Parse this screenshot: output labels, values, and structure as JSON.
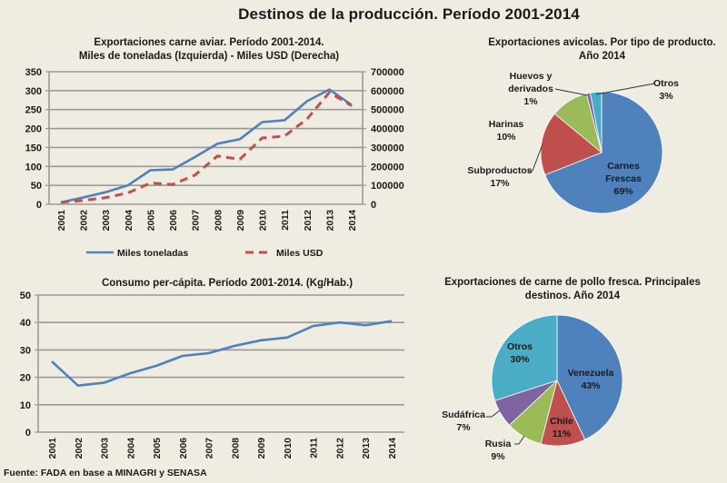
{
  "title": "Destinos de la producción. Período 2001-2014",
  "source": "Fuente: FADA en base a MINAGRI y SENASA",
  "colors": {
    "blue": "#4f81bd",
    "red": "#c0504d",
    "green": "#9bbb59",
    "purple": "#8064a2",
    "teal": "#4bacc6",
    "grid": "#9a9a9a",
    "background": "#efece2"
  },
  "chart_data": [
    {
      "type": "line",
      "title": "Exportaciones carne aviar. Período 2001-2014.",
      "subtitle": "Miles de toneladas (Izquierda) - Miles USD (Derecha)",
      "x": [
        "2001",
        "2002",
        "2003",
        "2004",
        "2005",
        "2006",
        "2007",
        "2008",
        "2009",
        "2010",
        "2011",
        "2012",
        "2013",
        "2014"
      ],
      "ylim": [
        0,
        350
      ],
      "y_ticks": [
        0,
        50,
        100,
        150,
        200,
        250,
        300,
        350
      ],
      "y2lim": [
        0,
        700000
      ],
      "y2_ticks": [
        0,
        100000,
        200000,
        300000,
        400000,
        500000,
        600000,
        700000
      ],
      "grid": true,
      "legend": "bottom",
      "series": [
        {
          "name": "Miles toneladas",
          "axis": "left",
          "style": "solid",
          "color": "#4f81bd",
          "values": [
            5,
            18,
            32,
            50,
            90,
            92,
            125,
            160,
            172,
            217,
            222,
            272,
            303,
            262
          ]
        },
        {
          "name": "Miles USD",
          "axis": "right",
          "style": "dashed",
          "color": "#c0504d",
          "values": [
            10000,
            20000,
            35000,
            60000,
            112000,
            105000,
            155000,
            255000,
            238000,
            350000,
            360000,
            450000,
            590000,
            520000
          ]
        }
      ]
    },
    {
      "type": "pie",
      "title": "Exportaciones avicolas. Por tipo de producto.",
      "subtitle": "Año 2014",
      "slices": [
        {
          "label": "Carnes Frescas",
          "value": 69,
          "color": "#4f81bd",
          "text": "69%"
        },
        {
          "label": "Subproductos",
          "value": 17,
          "color": "#c0504d",
          "text": "17%"
        },
        {
          "label": "Harinas",
          "value": 10,
          "color": "#9bbb59",
          "text": "10%"
        },
        {
          "label": "Huevos y derivados",
          "value": 1,
          "color": "#8064a2",
          "text": "1%"
        },
        {
          "label": "Otros",
          "value": 3,
          "color": "#4bacc6",
          "text": "3%"
        }
      ]
    },
    {
      "type": "line",
      "title": "Consumo per-cápita. Período 2001-2014. (Kg/Hab.)",
      "x": [
        "2001",
        "2002",
        "2003",
        "2004",
        "2005",
        "2006",
        "2007",
        "2008",
        "2009",
        "2010",
        "2011",
        "2012",
        "2013",
        "2014"
      ],
      "ylim": [
        0,
        50
      ],
      "y_ticks": [
        0,
        10,
        20,
        30,
        40,
        50
      ],
      "grid": true,
      "series": [
        {
          "name": "Kg/Hab.",
          "style": "solid",
          "color": "#4f81bd",
          "values": [
            25.8,
            17.0,
            18.0,
            21.5,
            24.2,
            27.8,
            28.8,
            31.5,
            33.5,
            34.5,
            38.7,
            40.0,
            39.0,
            40.5
          ]
        }
      ]
    },
    {
      "type": "pie",
      "title": "Exportaciones de carne de pollo fresca. Principales",
      "subtitle": "destinos. Año 2014",
      "slices": [
        {
          "label": "Venezuela",
          "value": 43,
          "color": "#4f81bd",
          "text": "43%"
        },
        {
          "label": "Chile",
          "value": 11,
          "color": "#c0504d",
          "text": "11%"
        },
        {
          "label": "Rusia",
          "value": 9,
          "color": "#9bbb59",
          "text": "9%"
        },
        {
          "label": "Sudáfrica",
          "value": 7,
          "color": "#8064a2",
          "text": "7%"
        },
        {
          "label": "Otros",
          "value": 30,
          "color": "#4bacc6",
          "text": "30%"
        }
      ]
    }
  ]
}
